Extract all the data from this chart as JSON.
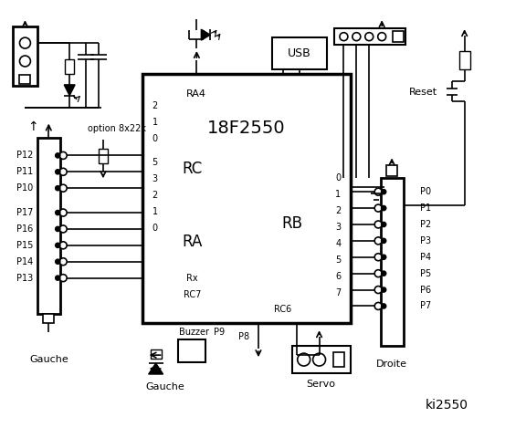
{
  "bg_color": "#ffffff",
  "title": "ki2550",
  "chip_label": "18F2550",
  "left_labels": [
    "P12",
    "P11",
    "P10",
    "P17",
    "P16",
    "P15",
    "P14",
    "P13"
  ],
  "right_labels": [
    "P0",
    "P1",
    "P2",
    "P3",
    "P4",
    "P5",
    "P6",
    "P7"
  ],
  "rc_pins": [
    "2",
    "1",
    "0",
    "5",
    "3",
    "2",
    "1",
    "0"
  ],
  "rb_pins": [
    "0",
    "1",
    "2",
    "3",
    "4",
    "5",
    "6",
    "7"
  ],
  "gauche_label": "Gauche",
  "droite_label": "Droite",
  "ra4_label": "RA4",
  "rc_label": "RC",
  "ra_label": "RA",
  "rb_label": "RB",
  "rx_label": "Rx",
  "rc7_label": "RC7",
  "rc6_label": "RC6",
  "usb_label": "USB",
  "reset_label": "Reset",
  "buzzer_label": "Buzzer",
  "p9_label": "P9",
  "p8_label": "P8",
  "servo_label": "Servo",
  "option_label": "option 8x22k"
}
